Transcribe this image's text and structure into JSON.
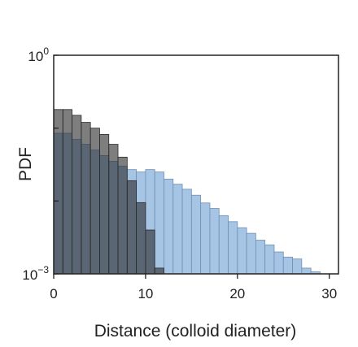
{
  "chart_data": {
    "type": "bar",
    "xlabel": "Distance (colloid diameter)",
    "ylabel": "PDF",
    "y_scale": "log",
    "xlim": [
      0,
      31
    ],
    "ylim": [
      0.001,
      1
    ],
    "x_ticks": [
      0,
      10,
      20,
      30
    ],
    "x_tick_labels": [
      "0",
      "10",
      "20",
      "30"
    ],
    "y_tick_labels": [
      {
        "value": 1,
        "base": "10",
        "exponent": "0"
      },
      {
        "value": 0.001,
        "base": "10",
        "exponent": "−3"
      }
    ],
    "grid": false,
    "bin_width": 1,
    "series": [
      {
        "color": "#a6c4e4",
        "edge_color": "#6f8fb2",
        "bin_starts": [
          0,
          1,
          2,
          3,
          4,
          5,
          6,
          7,
          8,
          9,
          10,
          11,
          12,
          13,
          14,
          15,
          16,
          17,
          18,
          19,
          20,
          21,
          22,
          23,
          24,
          25,
          26,
          27,
          28
        ],
        "values": [
          0.085,
          0.085,
          0.07,
          0.06,
          0.05,
          0.042,
          0.035,
          0.03,
          0.027,
          0.025,
          0.027,
          0.025,
          0.02,
          0.017,
          0.0145,
          0.012,
          0.0094,
          0.0079,
          0.0063,
          0.0052,
          0.0043,
          0.0036,
          0.0029,
          0.0025,
          0.002,
          0.0017,
          0.0016,
          0.0012,
          0.00107
        ]
      },
      {
        "color": "rgba(40,40,40,0.6)",
        "edge_color": "#2a2a2a",
        "bin_starts": [
          0,
          1,
          2,
          3,
          4,
          5,
          6,
          7,
          8,
          9,
          10,
          11
        ],
        "values": [
          0.18,
          0.18,
          0.15,
          0.12,
          0.1,
          0.082,
          0.06,
          0.04,
          0.019,
          0.0095,
          0.004,
          0.0012
        ]
      }
    ]
  }
}
